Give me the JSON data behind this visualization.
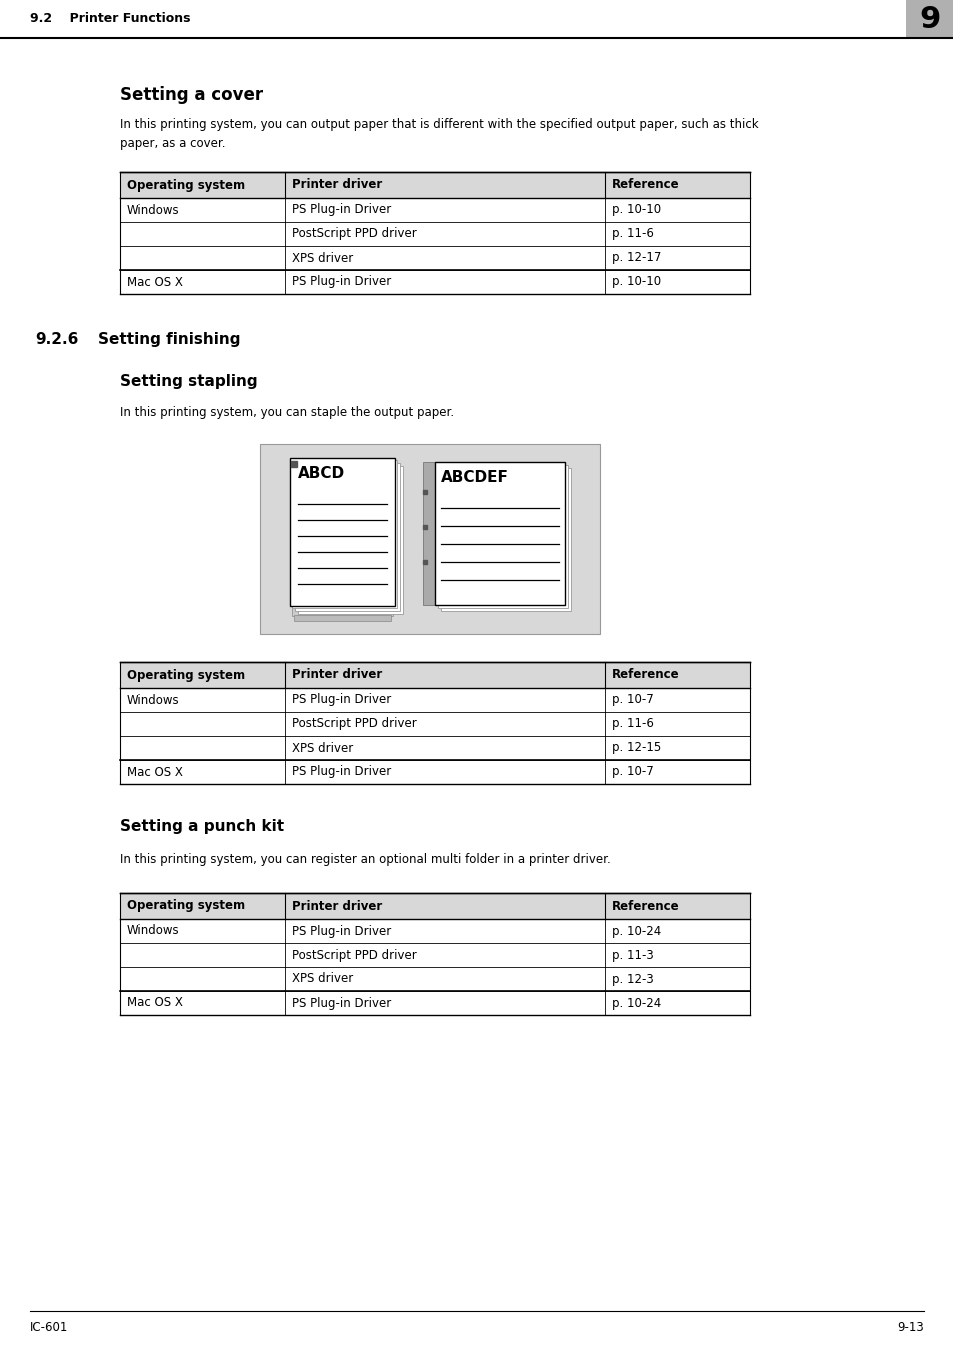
{
  "page_bg": "#ffffff",
  "header_section": "9.2    Printer Functions",
  "header_num": "9",
  "section1_title": "Setting a cover",
  "section1_body": "In this printing system, you can output paper that is different with the specified output paper, such as thick\npaper, as a cover.",
  "table1_headers": [
    "Operating system",
    "Printer driver",
    "Reference"
  ],
  "table1_rows": [
    [
      "Windows",
      "PS Plug-in Driver",
      "p. 10-10"
    ],
    [
      "",
      "PostScript PPD driver",
      "p. 11-6"
    ],
    [
      "",
      "XPS driver",
      "p. 12-17"
    ],
    [
      "Mac OS X",
      "PS Plug-in Driver",
      "p. 10-10"
    ]
  ],
  "section2_num": "9.2.6",
  "section2_title": "Setting finishing",
  "section3_title": "Setting stapling",
  "section3_body": "In this printing system, you can staple the output paper.",
  "table2_headers": [
    "Operating system",
    "Printer driver",
    "Reference"
  ],
  "table2_rows": [
    [
      "Windows",
      "PS Plug-in Driver",
      "p. 10-7"
    ],
    [
      "",
      "PostScript PPD driver",
      "p. 11-6"
    ],
    [
      "",
      "XPS driver",
      "p. 12-15"
    ],
    [
      "Mac OS X",
      "PS Plug-in Driver",
      "p. 10-7"
    ]
  ],
  "section4_title": "Setting a punch kit",
  "section4_body": "In this printing system, you can register an optional multi folder in a printer driver.",
  "table3_headers": [
    "Operating system",
    "Printer driver",
    "Reference"
  ],
  "table3_rows": [
    [
      "Windows",
      "PS Plug-in Driver",
      "p. 10-24"
    ],
    [
      "",
      "PostScript PPD driver",
      "p. 11-3"
    ],
    [
      "",
      "XPS driver",
      "p. 12-3"
    ],
    [
      "Mac OS X",
      "PS Plug-in Driver",
      "p. 10-24"
    ]
  ],
  "footer_left": "IC-601",
  "footer_right": "9-13"
}
